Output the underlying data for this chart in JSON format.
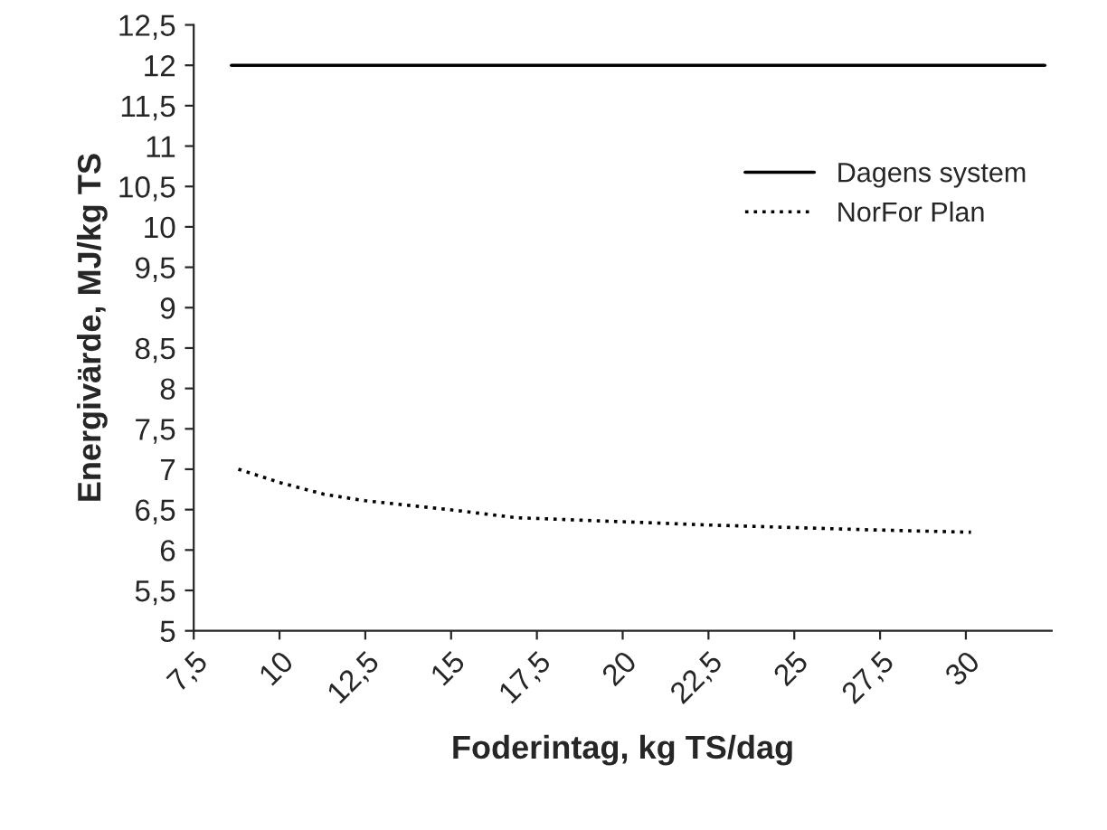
{
  "chart_data": {
    "type": "line",
    "xlabel": "Foderintag, kg TS/dag",
    "ylabel": "Energivärde, MJ/kg TS",
    "series": [
      {
        "name": "Dagens system",
        "color": "#000000",
        "line_style": "solid",
        "x": [
          8.6,
          32.3
        ],
        "values": [
          12,
          12
        ]
      },
      {
        "name": "NorFor Plan",
        "color": "#000000",
        "line_style": "dotted",
        "x": [
          8.8,
          10.05,
          11.3,
          12.5,
          14.95,
          16.9,
          20,
          22.45,
          27.2,
          30.15
        ],
        "values": [
          7.0,
          6.83,
          6.69,
          6.61,
          6.5,
          6.4,
          6.35,
          6.31,
          6.25,
          6.22
        ]
      }
    ],
    "xlim": [
      7.5,
      32.5
    ],
    "xticks": [
      {
        "value": 7.5,
        "label": "7,5"
      },
      10,
      {
        "value": 12.5,
        "label": "12,5"
      },
      15,
      {
        "value": 17.5,
        "label": "17,5"
      },
      20,
      {
        "value": 22.5,
        "label": "22,5"
      },
      25,
      {
        "value": 27.5,
        "label": "27,5"
      },
      30
    ],
    "ylim": [
      5,
      12.5
    ],
    "yticks": [
      5,
      {
        "value": 5.5,
        "label": "5,5"
      },
      6,
      {
        "value": 6.5,
        "label": "6,5"
      },
      7,
      {
        "value": 7.5,
        "label": "7,5"
      },
      8,
      {
        "value": 8.5,
        "label": "8,5"
      },
      9,
      {
        "value": 9.5,
        "label": "9,5"
      },
      10,
      {
        "value": 10.5,
        "label": "10,5"
      },
      11,
      {
        "value": 11.5,
        "label": "11,5"
      },
      12,
      {
        "value": 12.5,
        "label": "12,5"
      }
    ],
    "grid": false,
    "legend": "right"
  }
}
